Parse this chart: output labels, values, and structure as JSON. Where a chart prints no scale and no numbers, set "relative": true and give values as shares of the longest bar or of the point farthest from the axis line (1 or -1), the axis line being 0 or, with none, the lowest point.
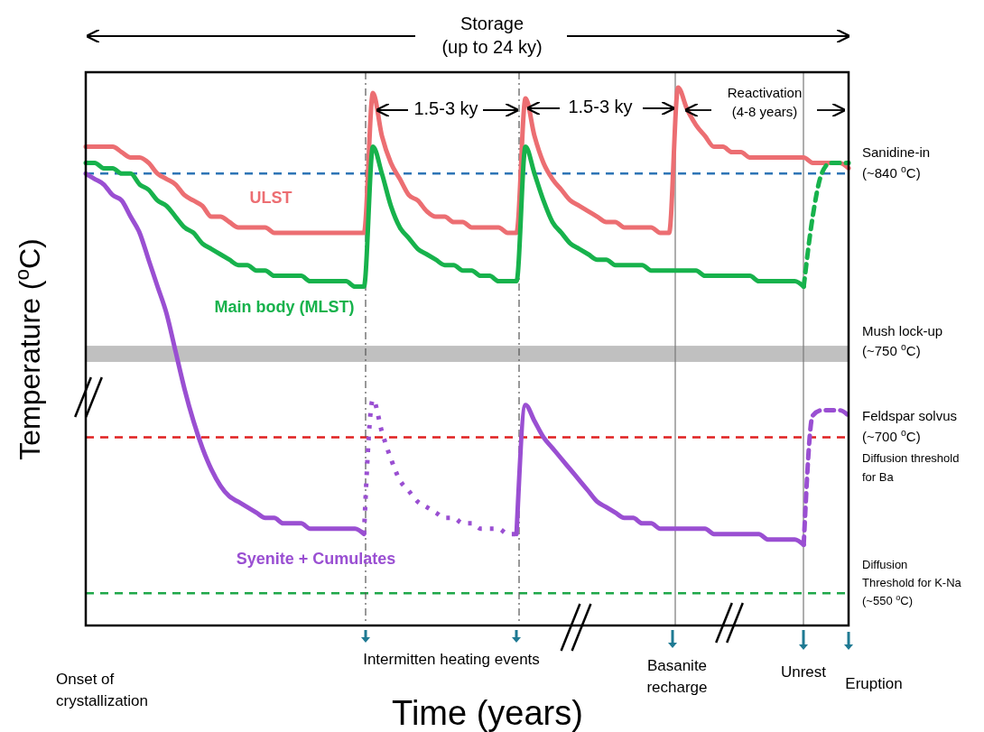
{
  "chart_data": {
    "type": "line",
    "relative": true,
    "xlabel": "Time (years)",
    "ylabel": "Temperature ($^{o}$C)",
    "categories": [
      null,
      null,
      null,
      null,
      null,
      null,
      null,
      null,
      null,
      null,
      null,
      null,
      null,
      null,
      null,
      null,
      null,
      null,
      null,
      null,
      null,
      null,
      null,
      null,
      null,
      null,
      null,
      null,
      null,
      null,
      null,
      null,
      null,
      null,
      null,
      null,
      null,
      null,
      null,
      null,
      null,
      null,
      null,
      null,
      null,
      null,
      null,
      null,
      null,
      null,
      null,
      null,
      null,
      null,
      null,
      null,
      null,
      null,
      null,
      null,
      null,
      null,
      null,
      null,
      null,
      null,
      null,
      null,
      null,
      null,
      null,
      null,
      null,
      null,
      null,
      null,
      null,
      null,
      null,
      null,
      null,
      null,
      null,
      null,
      null,
      null
    ],
    "series": [
      {
        "name": "ULST",
        "color": "#ec6e72",
        "line_style": "solid",
        "values": [
          0.89,
          0.89,
          0.89,
          0.89,
          0.88,
          0.87,
          0.87,
          0.86,
          0.84,
          0.83,
          0.82,
          0.8,
          0.79,
          0.78,
          0.76,
          0.76,
          0.75,
          0.74,
          0.74,
          0.74,
          0.74,
          0.73,
          0.73,
          0.73,
          0.73,
          0.73,
          0.73,
          0.73,
          0.73,
          0.73,
          0.73,
          0.73,
          0.99,
          0.91,
          0.86,
          0.83,
          0.8,
          0.79,
          0.77,
          0.76,
          0.76,
          0.75,
          0.75,
          0.74,
          0.74,
          0.74,
          0.74,
          0.73,
          0.73,
          0.98,
          0.91,
          0.86,
          0.83,
          0.81,
          0.79,
          0.78,
          0.77,
          0.76,
          0.75,
          0.75,
          0.74,
          0.74,
          0.74,
          0.74,
          0.73,
          0.73,
          1.0,
          0.96,
          0.93,
          0.91,
          0.89,
          0.89,
          0.88,
          0.88,
          0.87,
          0.87,
          0.87,
          0.87,
          0.87,
          0.87,
          0.87,
          0.86,
          0.86,
          0.86,
          0.86,
          0.85
        ]
      },
      {
        "name": "Main body (MLST)",
        "color": "#17b24c",
        "line_style": "solid",
        "values": [
          0.86,
          0.86,
          0.85,
          0.85,
          0.84,
          0.84,
          0.82,
          0.81,
          0.79,
          0.78,
          0.76,
          0.74,
          0.73,
          0.71,
          0.7,
          0.69,
          0.68,
          0.67,
          0.67,
          0.66,
          0.66,
          0.65,
          0.65,
          0.65,
          0.65,
          0.64,
          0.64,
          0.64,
          0.64,
          0.64,
          0.63,
          0.63,
          0.89,
          0.84,
          0.78,
          0.74,
          0.72,
          0.7,
          0.69,
          0.68,
          0.67,
          0.67,
          0.66,
          0.66,
          0.65,
          0.65,
          0.64,
          0.64,
          0.64,
          0.89,
          0.84,
          0.79,
          0.75,
          0.73,
          0.71,
          0.7,
          0.69,
          0.68,
          0.68,
          0.67,
          0.67,
          0.67,
          0.67,
          0.66,
          0.66,
          0.66,
          0.66,
          0.66,
          0.66,
          0.65,
          0.65,
          0.65,
          0.65,
          0.65,
          0.65,
          0.64,
          0.64,
          0.64,
          0.64,
          0.64,
          0.63,
          null,
          null,
          null,
          null,
          null
        ]
      },
      {
        "color": "#17b24c",
        "line_style": "dashed",
        "values": [
          null,
          null,
          null,
          null,
          null,
          null,
          null,
          null,
          null,
          null,
          null,
          null,
          null,
          null,
          null,
          null,
          null,
          null,
          null,
          null,
          null,
          null,
          null,
          null,
          null,
          null,
          null,
          null,
          null,
          null,
          null,
          null,
          null,
          null,
          null,
          null,
          null,
          null,
          null,
          null,
          null,
          null,
          null,
          null,
          null,
          null,
          null,
          null,
          null,
          null,
          null,
          null,
          null,
          null,
          null,
          null,
          null,
          null,
          null,
          null,
          null,
          null,
          null,
          null,
          null,
          null,
          null,
          null,
          null,
          null,
          null,
          null,
          null,
          null,
          null,
          null,
          null,
          null,
          null,
          null,
          0.63,
          0.76,
          0.84,
          0.86,
          0.86,
          0.86
        ]
      },
      {
        "name": "Syenite + Cumulates",
        "color": "#9a4fd2",
        "line_style": "solid",
        "values": [
          0.84,
          0.83,
          0.82,
          0.8,
          0.79,
          0.76,
          0.73,
          0.68,
          0.63,
          0.58,
          0.51,
          0.44,
          0.38,
          0.33,
          0.29,
          0.26,
          0.24,
          0.23,
          0.22,
          0.21,
          0.2,
          0.2,
          0.19,
          0.19,
          0.19,
          0.18,
          0.18,
          0.18,
          0.18,
          0.18,
          0.18,
          0.17,
          null,
          null,
          null,
          null,
          null,
          null,
          null,
          null,
          null,
          null,
          null,
          null,
          null,
          null,
          null,
          null,
          0.17,
          0.41,
          0.38,
          0.35,
          0.33,
          0.31,
          0.29,
          0.27,
          0.25,
          0.23,
          0.22,
          0.21,
          0.2,
          0.2,
          0.19,
          0.19,
          0.18,
          0.18,
          0.18,
          0.18,
          0.18,
          0.18,
          0.17,
          0.17,
          0.17,
          0.17,
          0.17,
          0.17,
          0.16,
          0.16,
          0.16,
          0.16,
          0.15,
          null,
          null,
          null,
          null,
          null
        ]
      },
      {
        "color": "#9a4fd2",
        "line_style": "dotted",
        "values": [
          null,
          null,
          null,
          null,
          null,
          null,
          null,
          null,
          null,
          null,
          null,
          null,
          null,
          null,
          null,
          null,
          null,
          null,
          null,
          null,
          null,
          null,
          null,
          null,
          null,
          null,
          null,
          null,
          null,
          null,
          null,
          0.17,
          0.42,
          0.36,
          0.31,
          0.27,
          0.25,
          0.23,
          0.22,
          0.21,
          0.2,
          0.2,
          0.19,
          0.19,
          0.18,
          0.18,
          0.18,
          0.17,
          0.17,
          null,
          null,
          null,
          null,
          null,
          null,
          null,
          null,
          null,
          null,
          null,
          null,
          null,
          null,
          null,
          null,
          null,
          null,
          null,
          null,
          null,
          null,
          null,
          null,
          null,
          null,
          null,
          null,
          null,
          null,
          null,
          null,
          null,
          null,
          null,
          null,
          null
        ]
      },
      {
        "color": "#9a4fd2",
        "line_style": "dashed",
        "values": [
          null,
          null,
          null,
          null,
          null,
          null,
          null,
          null,
          null,
          null,
          null,
          null,
          null,
          null,
          null,
          null,
          null,
          null,
          null,
          null,
          null,
          null,
          null,
          null,
          null,
          null,
          null,
          null,
          null,
          null,
          null,
          null,
          null,
          null,
          null,
          null,
          null,
          null,
          null,
          null,
          null,
          null,
          null,
          null,
          null,
          null,
          null,
          null,
          null,
          null,
          null,
          null,
          null,
          null,
          null,
          null,
          null,
          null,
          null,
          null,
          null,
          null,
          null,
          null,
          null,
          null,
          null,
          null,
          null,
          null,
          null,
          null,
          null,
          null,
          null,
          null,
          null,
          null,
          null,
          null,
          0.15,
          0.39,
          0.4,
          0.4,
          0.4,
          0.39
        ]
      }
    ],
    "ref_lines": [
      {
        "axis": "y",
        "value": 0.84,
        "label": "Sanidine-in\n(~840 $^{o}$C)",
        "color": "#2e75b6",
        "line_style": "dashed"
      },
      {
        "axis": "y",
        "value": 0.35,
        "label": "Feldspar solvus\n(~700 $^{o}$C)",
        "color": "#e02020",
        "line_style": "dashed"
      },
      {
        "axis": "y",
        "value": 0.06,
        "label": "Diffusion\nThreshold  for K-Na\n(~550 $^{o}$C)",
        "color": "#1fa84a",
        "line_style": "dashed"
      }
    ],
    "bands": [
      {
        "axis": "y",
        "from": 0.49,
        "to": 0.52,
        "label": "Mush lock-up\n(~750 $^{o}$C)",
        "color": "#c0c0c0"
      }
    ],
    "annotations": [
      "Storage\n(up to 24 ky)",
      "1.5-3 ky",
      "1.5-3 ky",
      "Reactivation\n(4-8 years)",
      "Onset of\ncrystallization",
      "Intermitten heating events",
      "Basanite\nrecharge",
      "Unrest",
      "Eruption",
      "Diffusion threshold\nfor Ba"
    ]
  }
}
